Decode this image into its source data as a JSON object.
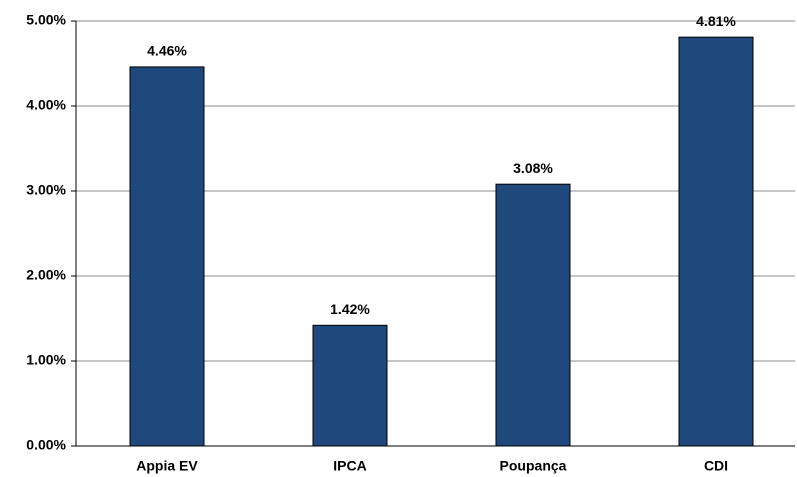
{
  "chart_data": {
    "type": "bar",
    "categories": [
      "Appia EV",
      "IPCA",
      "Poupança",
      "CDI"
    ],
    "values": [
      4.46,
      1.42,
      3.08,
      4.81
    ],
    "value_labels": [
      "4.46%",
      "1.42%",
      "3.08%",
      "4.81%"
    ],
    "color": "#1f497d",
    "ylim": [
      0,
      5
    ],
    "yticks": [
      {
        "value": 0,
        "label": "0.00%"
      },
      {
        "value": 1,
        "label": "1.00%"
      },
      {
        "value": 2,
        "label": "2.00%"
      },
      {
        "value": 3,
        "label": "3.00%"
      },
      {
        "value": 4,
        "label": "4.00%"
      },
      {
        "value": 5,
        "label": "5.00%"
      }
    ],
    "grid": true
  }
}
